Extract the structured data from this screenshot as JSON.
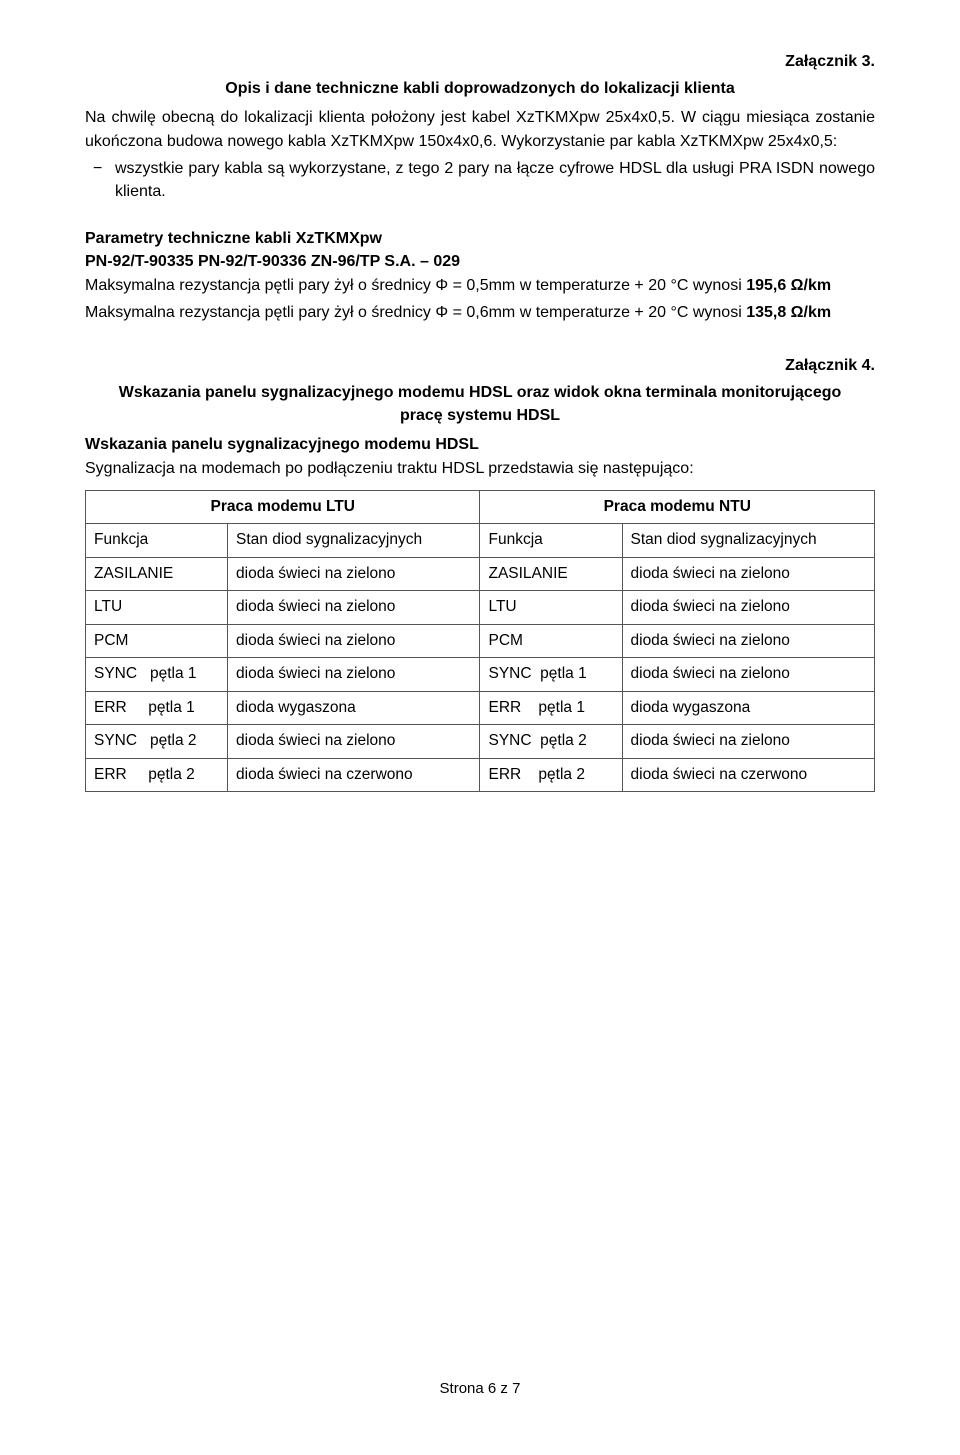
{
  "attachment3": {
    "label": "Załącznik 3.",
    "title": "Opis i dane techniczne kabli doprowadzonych do lokalizacji klienta",
    "para1": "Na chwilę obecną do lokalizacji klienta położony jest kabel XzTKMXpw 25x4x0,5. W ciągu miesiąca zostanie ukończona budowa nowego kabla XzTKMXpw 150x4x0,6. Wykorzystanie par kabla XzTKMXpw 25x4x0,5:",
    "bullet1": "wszystkie pary kabla są wykorzystane, z tego 2 pary na łącze cyfrowe HDSL dla usługi PRA ISDN nowego klienta.",
    "params_heading1": "Parametry techniczne kabli XzTKMXpw",
    "params_heading2": "PN-92/T-90335 PN-92/T-90336 ZN-96/TP S.A. – 029",
    "para2a": "Maksymalna rezystancja pętli pary żył o średnicy Φ = 0,5mm w temperaturze + 20 °C wynosi ",
    "para2b": "195,6 Ω/km",
    "para3a": "Maksymalna rezystancja pętli pary żył o średnicy Φ = 0,6mm w temperaturze + 20 °C wynosi ",
    "para3b": "135,8 Ω/km"
  },
  "attachment4": {
    "label": "Załącznik 4.",
    "title": "Wskazania panelu sygnalizacyjnego modemu HDSL oraz widok okna terminala monitorującego pracę systemu HDSL",
    "subheading": "Wskazania panelu sygnalizacyjnego modemu HDSL",
    "intro": "Sygnalizacja na modemach po podłączeniu traktu HDSL przedstawia się następująco:",
    "table": {
      "header_ltu": "Praca modemu LTU",
      "header_ntu": "Praca modemu NTU",
      "col_funkcja": "Funkcja",
      "col_stan": "Stan diod sygnalizacyjnych",
      "rows": [
        {
          "f1": "ZASILANIE",
          "s1": "dioda świeci na zielono",
          "f2": "ZASILANIE",
          "s2": "dioda świeci na zielono"
        },
        {
          "f1": "LTU",
          "s1": "dioda świeci na zielono",
          "f2": "LTU",
          "s2": "dioda świeci na zielono"
        },
        {
          "f1": "PCM",
          "s1": "dioda świeci na zielono",
          "f2": "PCM",
          "s2": "dioda świeci na zielono"
        },
        {
          "f1": "SYNC   pętla 1",
          "s1": "dioda świeci na zielono",
          "f2": "SYNC  pętla 1",
          "s2": "dioda świeci na zielono"
        },
        {
          "f1": "ERR     pętla 1",
          "s1": "dioda wygaszona",
          "f2": "ERR    pętla 1",
          "s2": "dioda wygaszona"
        },
        {
          "f1": "SYNC   pętla 2",
          "s1": "dioda świeci na zielono",
          "f2": "SYNC  pętla 2",
          "s2": "dioda świeci na zielono"
        },
        {
          "f1": "ERR     pętla 2",
          "s1": "dioda świeci na czerwono",
          "f2": "ERR    pętla 2",
          "s2": "dioda świeci na czerwono"
        }
      ]
    }
  },
  "footer": {
    "page": "Strona 6 z 7"
  }
}
